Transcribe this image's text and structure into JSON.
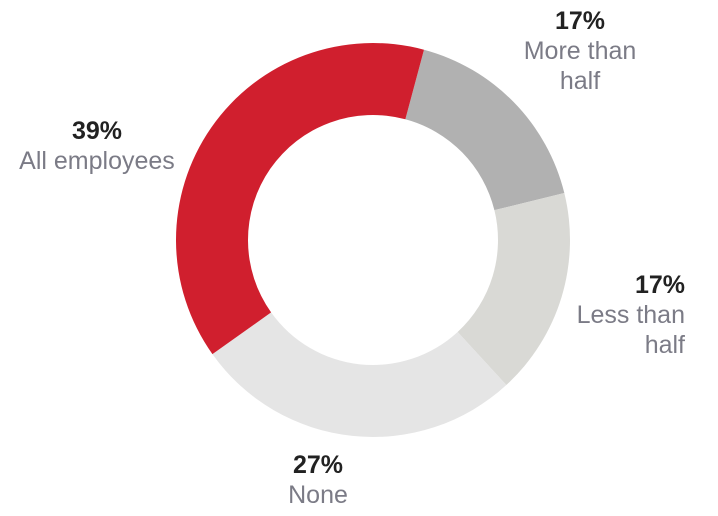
{
  "chart_data": {
    "type": "donut",
    "categories": [
      "More than half",
      "Less than half",
      "None",
      "All employees"
    ],
    "values": [
      17,
      17,
      27,
      39
    ],
    "value_labels": [
      "17%",
      "17%",
      "27%",
      "39%"
    ],
    "colors": [
      "#b1b1b1",
      "#d9d9d5",
      "#e5e5e5",
      "#d01f2e"
    ]
  }
}
